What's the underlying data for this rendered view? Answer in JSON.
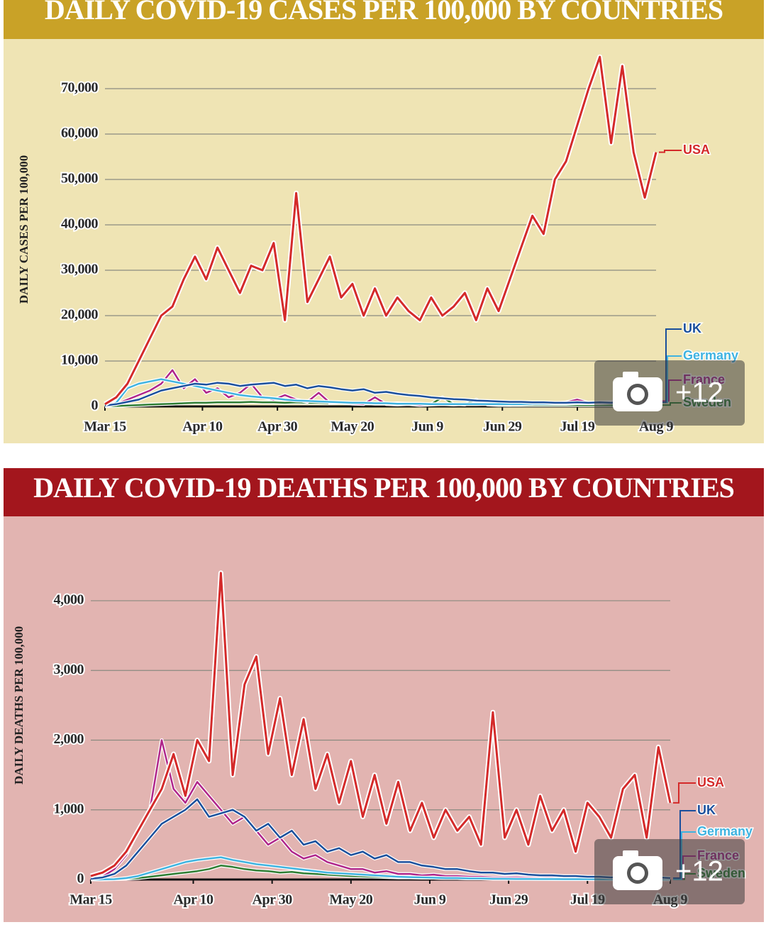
{
  "chart_data": [
    {
      "type": "line",
      "title": "DAILY COVID-19 CASES PER 100,000 BY COUNTRIES",
      "y_label": "DAILY CASES PER 100,000",
      "x": [
        0,
        3,
        6,
        9,
        12,
        15,
        18,
        21,
        24,
        27,
        30,
        33,
        36,
        39,
        42,
        45,
        48,
        51,
        54,
        57,
        60,
        63,
        66,
        69,
        72,
        75,
        78,
        81,
        84,
        87,
        90,
        93,
        96,
        99,
        102,
        105,
        108,
        111,
        114,
        117,
        120,
        123,
        126,
        129,
        132,
        135,
        138,
        141,
        144,
        147
      ],
      "xlim": [
        0,
        147
      ],
      "xticks": [
        {
          "value": 0,
          "label": "Mar 15"
        },
        {
          "value": 26,
          "label": "Apr 10"
        },
        {
          "value": 46,
          "label": "Apr 30"
        },
        {
          "value": 66,
          "label": "May 20"
        },
        {
          "value": 86,
          "label": "Jun 9"
        },
        {
          "value": 106,
          "label": "Jun 29"
        },
        {
          "value": 126,
          "label": "Jul 19"
        },
        {
          "value": 147,
          "label": "Aug 9"
        }
      ],
      "ylim": [
        0,
        78000
      ],
      "yticks": [
        0,
        {
          "value": 10000,
          "label": "10,000"
        },
        {
          "value": 20000,
          "label": "20,000"
        },
        {
          "value": 30000,
          "label": "30,000"
        },
        {
          "value": 40000,
          "label": "40,000"
        },
        {
          "value": 50000,
          "label": "50,000"
        },
        {
          "value": 60000,
          "label": "60,000"
        },
        {
          "value": 70000,
          "label": "70,000"
        }
      ],
      "grid": true,
      "series": [
        {
          "name": "USA",
          "color": "#d42a2a",
          "values": [
            500,
            2000,
            5000,
            10000,
            15000,
            20000,
            22000,
            28000,
            33000,
            28000,
            35000,
            30000,
            25000,
            31000,
            30000,
            36000,
            19000,
            47000,
            23000,
            28000,
            33000,
            24000,
            27000,
            20000,
            26000,
            20000,
            24000,
            21000,
            19000,
            24000,
            20000,
            22000,
            25000,
            19000,
            26000,
            21000,
            28000,
            35000,
            42000,
            38000,
            50000,
            54000,
            62000,
            70000,
            77000,
            58000,
            75000,
            56000,
            46000,
            56000
          ]
        },
        {
          "name": "UK",
          "color": "#1a4f9c",
          "values": [
            200,
            500,
            1000,
            1500,
            2500,
            3500,
            4000,
            4500,
            5000,
            4800,
            5200,
            5000,
            4500,
            4800,
            5000,
            5200,
            4500,
            4800,
            4000,
            4500,
            4200,
            3800,
            3500,
            3800,
            3000,
            3200,
            2800,
            2500,
            2300,
            2000,
            1800,
            1600,
            1500,
            1300,
            1200,
            1100,
            1000,
            1000,
            900,
            900,
            800,
            800,
            900,
            800,
            900,
            800,
            900,
            900,
            800,
            900
          ]
        },
        {
          "name": "Germany",
          "color": "#3fb3e0",
          "values": [
            100,
            800,
            4000,
            5000,
            5500,
            6000,
            5500,
            5000,
            4500,
            4000,
            3500,
            3000,
            2500,
            2200,
            2000,
            1800,
            1500,
            1300,
            1200,
            1100,
            1000,
            900,
            800,
            800,
            700,
            700,
            600,
            600,
            600,
            500,
            500,
            500,
            500,
            500,
            500,
            500,
            500,
            500,
            600,
            600,
            600,
            600,
            700,
            700,
            700,
            800,
            800,
            800,
            900,
            900
          ]
        },
        {
          "name": "France",
          "color": "#b0258a",
          "values": [
            100,
            500,
            1500,
            2500,
            3500,
            5000,
            8000,
            4000,
            6000,
            3000,
            4000,
            2000,
            3000,
            5000,
            2000,
            1500,
            2500,
            1500,
            1000,
            3000,
            800,
            800,
            600,
            500,
            2000,
            500,
            400,
            500,
            300,
            400,
            500,
            400,
            500,
            500,
            600,
            600,
            500,
            700,
            600,
            800,
            700,
            900,
            1500,
            800,
            900,
            1000,
            1200,
            1000,
            1100,
            1200
          ]
        },
        {
          "name": "Sweden",
          "color": "#2e7d32",
          "values": [
            50,
            100,
            200,
            300,
            400,
            500,
            600,
            700,
            800,
            800,
            900,
            900,
            900,
            1000,
            900,
            900,
            800,
            900,
            800,
            800,
            700,
            800,
            700,
            700,
            600,
            600,
            700,
            600,
            600,
            500,
            2000,
            500,
            400,
            1500,
            400,
            300,
            300,
            300,
            300,
            300,
            300,
            300,
            300,
            300,
            300,
            300,
            300,
            300,
            300,
            300
          ]
        }
      ]
    },
    {
      "type": "line",
      "title": "DAILY COVID-19 DEATHS PER 100,000 BY COUNTRIES",
      "y_label": "DAILY DEATHS PER 100,000",
      "x": [
        0,
        3,
        6,
        9,
        12,
        15,
        18,
        21,
        24,
        27,
        30,
        33,
        36,
        39,
        42,
        45,
        48,
        51,
        54,
        57,
        60,
        63,
        66,
        69,
        72,
        75,
        78,
        81,
        84,
        87,
        90,
        93,
        96,
        99,
        102,
        105,
        108,
        111,
        114,
        117,
        120,
        123,
        126,
        129,
        132,
        135,
        138,
        141,
        144,
        147
      ],
      "xlim": [
        0,
        147
      ],
      "xticks": [
        {
          "value": 0,
          "label": "Mar 15"
        },
        {
          "value": 26,
          "label": "Apr 10"
        },
        {
          "value": 46,
          "label": "Apr 30"
        },
        {
          "value": 66,
          "label": "May 20"
        },
        {
          "value": 86,
          "label": "Jun 9"
        },
        {
          "value": 106,
          "label": "Jun 29"
        },
        {
          "value": 126,
          "label": "Jul 19"
        },
        {
          "value": 147,
          "label": "Aug 9"
        }
      ],
      "ylim": [
        0,
        5000
      ],
      "yticks": [
        0,
        {
          "value": 1000,
          "label": "1,000"
        },
        {
          "value": 2000,
          "label": "2,000"
        },
        {
          "value": 3000,
          "label": "3,000"
        },
        {
          "value": 4000,
          "label": "4,000"
        }
      ],
      "grid": true,
      "series": [
        {
          "name": "USA",
          "color": "#d42a2a",
          "values": [
            50,
            100,
            200,
            400,
            700,
            1000,
            1300,
            1800,
            1200,
            2000,
            1700,
            4400,
            1500,
            2800,
            3200,
            1800,
            2600,
            1500,
            2300,
            1300,
            1800,
            1100,
            1700,
            900,
            1500,
            800,
            1400,
            700,
            1100,
            600,
            1000,
            700,
            900,
            500,
            2400,
            600,
            1000,
            500,
            1200,
            700,
            1000,
            400,
            1100,
            900,
            600,
            1300,
            1500,
            600,
            1900,
            1100
          ]
        },
        {
          "name": "UK",
          "color": "#1a4f9c",
          "values": [
            10,
            30,
            80,
            200,
            400,
            600,
            800,
            900,
            1000,
            1150,
            900,
            950,
            1000,
            900,
            700,
            800,
            600,
            700,
            500,
            550,
            400,
            450,
            350,
            400,
            300,
            350,
            250,
            250,
            200,
            180,
            150,
            150,
            120,
            100,
            100,
            80,
            90,
            70,
            60,
            60,
            50,
            50,
            40,
            40,
            30,
            40,
            30,
            30,
            30,
            20
          ]
        },
        {
          "name": "Germany",
          "color": "#3fb3e0",
          "values": [
            0,
            2,
            5,
            20,
            50,
            100,
            150,
            200,
            250,
            280,
            300,
            320,
            280,
            250,
            220,
            200,
            180,
            160,
            140,
            120,
            100,
            90,
            80,
            70,
            60,
            50,
            40,
            35,
            30,
            25,
            20,
            20,
            15,
            15,
            10,
            10,
            8,
            8,
            6,
            6,
            5,
            5,
            5,
            4,
            4,
            4,
            3,
            3,
            3,
            3
          ]
        },
        {
          "name": "France",
          "color": "#b0258a",
          "values": [
            10,
            40,
            150,
            350,
            700,
            1000,
            2000,
            1300,
            1100,
            1400,
            1200,
            1000,
            800,
            900,
            700,
            500,
            600,
            400,
            300,
            350,
            250,
            200,
            150,
            150,
            100,
            120,
            80,
            80,
            60,
            70,
            50,
            50,
            40,
            40,
            30,
            30,
            30,
            25,
            20,
            25,
            20,
            20,
            20,
            15,
            20,
            15,
            20,
            15,
            15,
            10
          ]
        },
        {
          "name": "Sweden",
          "color": "#2e7d32",
          "values": [
            0,
            0,
            5,
            10,
            20,
            40,
            60,
            80,
            100,
            120,
            150,
            200,
            180,
            150,
            130,
            120,
            100,
            110,
            90,
            80,
            70,
            60,
            50,
            45,
            40,
            35,
            30,
            30,
            25,
            25,
            20,
            20,
            15,
            15,
            15,
            12,
            12,
            10,
            10,
            8,
            8,
            8,
            6,
            6,
            5,
            5,
            5,
            4,
            4,
            4
          ]
        }
      ]
    }
  ],
  "photo_badge": "+12"
}
